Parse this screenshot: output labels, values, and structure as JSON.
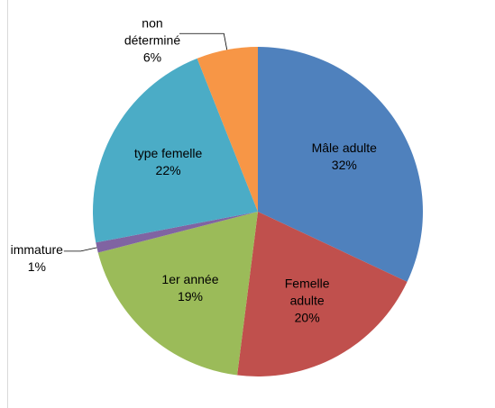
{
  "chart_data": {
    "type": "pie",
    "categories": [
      "Mâle adulte",
      "Femelle adulte",
      "1er année",
      "immature",
      "type femelle",
      "non déterminé"
    ],
    "values": [
      32,
      20,
      19,
      1,
      22,
      6
    ],
    "value_labels": [
      "32%",
      "20%",
      "19%",
      "1%",
      "22%",
      "6%"
    ],
    "colors": [
      "#4f81bd",
      "#c0504d",
      "#9bbb59",
      "#8064a2",
      "#4bacc6",
      "#f79646"
    ]
  }
}
